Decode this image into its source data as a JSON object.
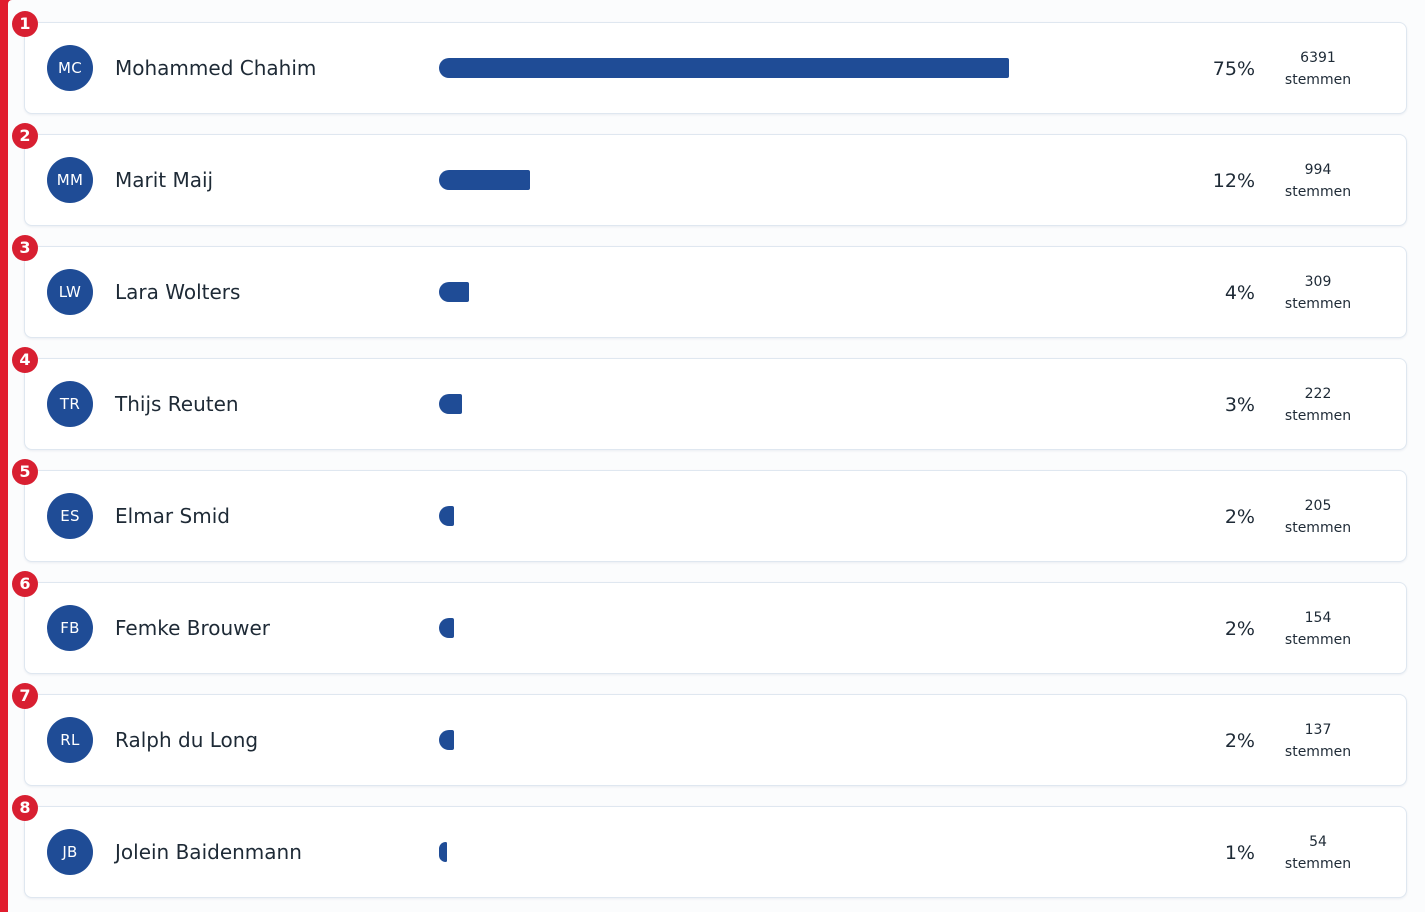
{
  "colors": {
    "accent": "#1f4c96",
    "rank_badge": "#d81f31",
    "frame": "#e11d2e"
  },
  "candidates": [
    {
      "rank": "1",
      "initials": "MC",
      "name": "Mohammed Chahim",
      "percent_label": "75%",
      "share": 0.75,
      "votes": "6391",
      "votes_label": "stemmen"
    },
    {
      "rank": "2",
      "initials": "MM",
      "name": "Marit Maij",
      "percent_label": "12%",
      "share": 0.12,
      "votes": "994",
      "votes_label": "stemmen"
    },
    {
      "rank": "3",
      "initials": "LW",
      "name": "Lara Wolters",
      "percent_label": "4%",
      "share": 0.04,
      "votes": "309",
      "votes_label": "stemmen"
    },
    {
      "rank": "4",
      "initials": "TR",
      "name": "Thijs Reuten",
      "percent_label": "3%",
      "share": 0.03,
      "votes": "222",
      "votes_label": "stemmen"
    },
    {
      "rank": "5",
      "initials": "ES",
      "name": "Elmar Smid",
      "percent_label": "2%",
      "share": 0.02,
      "votes": "205",
      "votes_label": "stemmen"
    },
    {
      "rank": "6",
      "initials": "FB",
      "name": "Femke Brouwer",
      "percent_label": "2%",
      "share": 0.02,
      "votes": "154",
      "votes_label": "stemmen"
    },
    {
      "rank": "7",
      "initials": "RL",
      "name": "Ralph du Long",
      "percent_label": "2%",
      "share": 0.02,
      "votes": "137",
      "votes_label": "stemmen"
    },
    {
      "rank": "8",
      "initials": "JB",
      "name": "Jolein Baidenmann",
      "percent_label": "1%",
      "share": 0.01,
      "votes": "54",
      "votes_label": "stemmen"
    }
  ]
}
